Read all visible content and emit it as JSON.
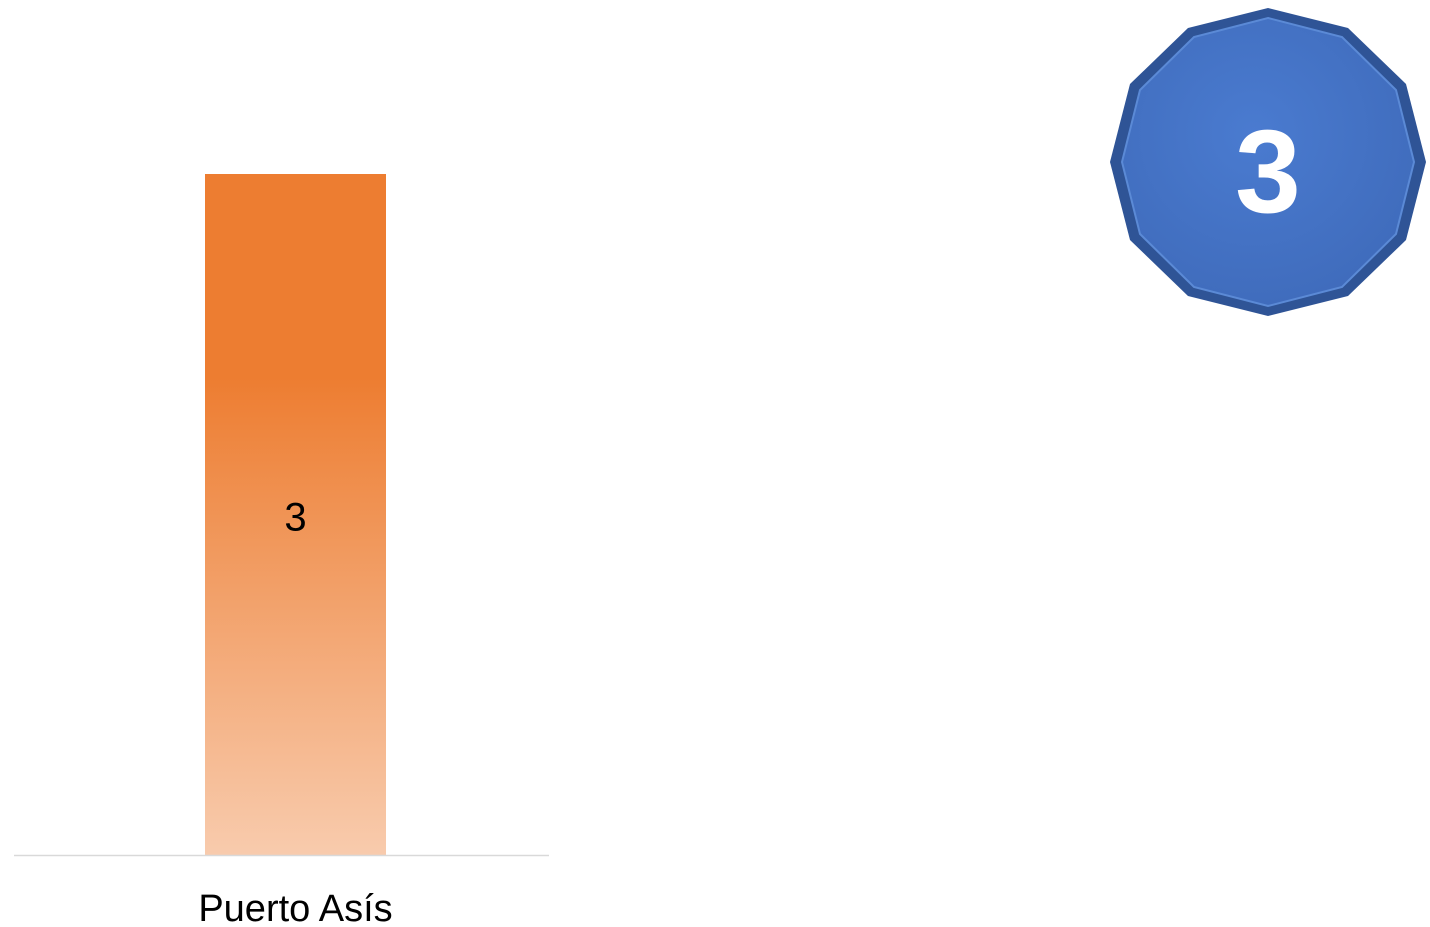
{
  "chart_data": {
    "type": "bar",
    "categories": [
      "Puerto Asís"
    ],
    "values": [
      3
    ],
    "data_labels": [
      "3"
    ],
    "ylim": [
      0,
      3
    ],
    "grid": false,
    "legend": "none",
    "bar_color_top": "#ED7D31",
    "bar_color_bottom": "#F8CBAD",
    "axis_color": "#D9D9D9"
  },
  "badge": {
    "value": "3",
    "shape": "dodecagon",
    "fill_color": "#4472C4",
    "text_color": "#FFFFFF"
  }
}
